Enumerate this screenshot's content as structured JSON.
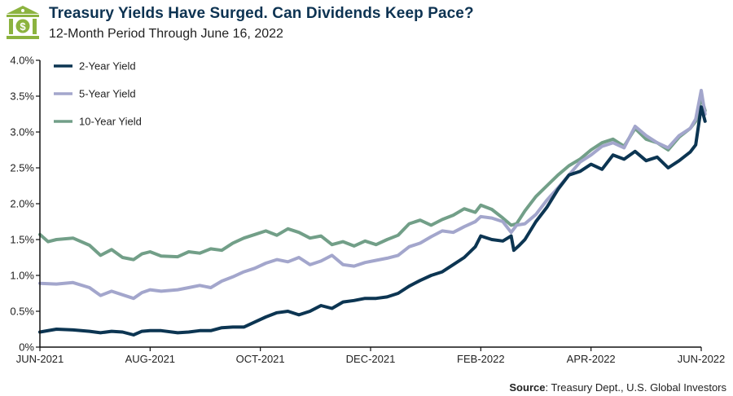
{
  "header": {
    "icon": "bank-dollar-icon",
    "title": "Treasury Yields Have Surged. Can Dividends Keep Pace?",
    "subtitle": "12-Month Period Through June 16, 2022"
  },
  "source": {
    "label": "Source",
    "text": ": Treasury Dept., U.S. Global Investors"
  },
  "chart_data": {
    "type": "line",
    "title": "Treasury Yields Have Surged. Can Dividends Keep Pace?",
    "subtitle": "12-Month Period Through June 16, 2022",
    "xlabel": "",
    "ylabel": "",
    "x_unit": "months since June 2021",
    "xlim": [
      0,
      12.07
    ],
    "ylim": [
      0,
      4.0
    ],
    "x_ticks": [
      {
        "value": 0,
        "label": "JUN-2021"
      },
      {
        "value": 2,
        "label": "AUG-2021"
      },
      {
        "value": 4,
        "label": "OCT-2021"
      },
      {
        "value": 6,
        "label": "DEC-2021"
      },
      {
        "value": 8,
        "label": "FEB-2022"
      },
      {
        "value": 10,
        "label": "APR-2022"
      },
      {
        "value": 12,
        "label": "JUN-2022"
      }
    ],
    "y_ticks": [
      {
        "value": 0,
        "label": "0%"
      },
      {
        "value": 0.5,
        "label": "0.5%"
      },
      {
        "value": 1.0,
        "label": "1.0%"
      },
      {
        "value": 1.5,
        "label": "1.5%"
      },
      {
        "value": 2.0,
        "label": "2.0%"
      },
      {
        "value": 2.5,
        "label": "2.5%"
      },
      {
        "value": 3.0,
        "label": "3.0%"
      },
      {
        "value": 3.5,
        "label": "3.5%"
      },
      {
        "value": 4.0,
        "label": "4.0%"
      }
    ],
    "grid": false,
    "legend_position": "top-left",
    "series": [
      {
        "name": "10-Year Yield",
        "color": "#729f88",
        "x": [
          0,
          0.15,
          0.3,
          0.6,
          0.9,
          1.1,
          1.3,
          1.5,
          1.7,
          1.85,
          2.0,
          2.2,
          2.5,
          2.7,
          2.9,
          3.1,
          3.3,
          3.5,
          3.7,
          3.9,
          4.1,
          4.3,
          4.5,
          4.7,
          4.9,
          5.1,
          5.3,
          5.5,
          5.7,
          5.9,
          6.1,
          6.3,
          6.5,
          6.7,
          6.9,
          7.1,
          7.3,
          7.5,
          7.7,
          7.9,
          8.0,
          8.2,
          8.4,
          8.55,
          8.65,
          8.8,
          9.0,
          9.2,
          9.4,
          9.6,
          9.8,
          10.0,
          10.2,
          10.4,
          10.6,
          10.8,
          11.0,
          11.2,
          11.4,
          11.6,
          11.8,
          11.9,
          12.0,
          12.07
        ],
        "values": [
          1.57,
          1.47,
          1.5,
          1.52,
          1.42,
          1.28,
          1.36,
          1.25,
          1.22,
          1.3,
          1.33,
          1.27,
          1.26,
          1.33,
          1.31,
          1.37,
          1.35,
          1.45,
          1.52,
          1.57,
          1.62,
          1.56,
          1.65,
          1.6,
          1.52,
          1.55,
          1.43,
          1.47,
          1.41,
          1.48,
          1.43,
          1.5,
          1.56,
          1.72,
          1.77,
          1.7,
          1.78,
          1.84,
          1.93,
          1.88,
          1.98,
          1.92,
          1.8,
          1.7,
          1.72,
          1.9,
          2.1,
          2.25,
          2.4,
          2.53,
          2.62,
          2.75,
          2.85,
          2.9,
          2.8,
          3.05,
          2.9,
          2.85,
          2.75,
          2.93,
          3.05,
          3.15,
          3.48,
          3.3
        ]
      },
      {
        "name": "5-Year Yield",
        "color": "#a3a6cc",
        "x": [
          0,
          0.3,
          0.6,
          0.9,
          1.1,
          1.3,
          1.5,
          1.7,
          1.85,
          2.0,
          2.2,
          2.5,
          2.7,
          2.9,
          3.1,
          3.3,
          3.5,
          3.7,
          3.9,
          4.1,
          4.3,
          4.5,
          4.7,
          4.9,
          5.1,
          5.3,
          5.5,
          5.7,
          5.9,
          6.1,
          6.3,
          6.5,
          6.7,
          6.9,
          7.1,
          7.3,
          7.5,
          7.7,
          7.9,
          8.0,
          8.2,
          8.4,
          8.55,
          8.65,
          8.8,
          9.0,
          9.2,
          9.4,
          9.6,
          9.8,
          10.0,
          10.2,
          10.4,
          10.6,
          10.8,
          11.0,
          11.2,
          11.4,
          11.6,
          11.8,
          11.9,
          12.0,
          12.07
        ],
        "values": [
          0.89,
          0.88,
          0.9,
          0.83,
          0.72,
          0.78,
          0.73,
          0.68,
          0.76,
          0.8,
          0.78,
          0.8,
          0.83,
          0.86,
          0.83,
          0.92,
          0.98,
          1.05,
          1.1,
          1.17,
          1.22,
          1.19,
          1.25,
          1.15,
          1.2,
          1.28,
          1.15,
          1.13,
          1.18,
          1.21,
          1.24,
          1.28,
          1.4,
          1.45,
          1.54,
          1.62,
          1.6,
          1.68,
          1.75,
          1.82,
          1.8,
          1.75,
          1.6,
          1.7,
          1.72,
          1.85,
          2.05,
          2.22,
          2.4,
          2.58,
          2.68,
          2.8,
          2.85,
          2.78,
          3.08,
          2.95,
          2.85,
          2.78,
          2.95,
          3.05,
          3.18,
          3.58,
          3.25
        ]
      },
      {
        "name": "2-Year Yield",
        "color": "#0c3552",
        "x": [
          0,
          0.3,
          0.6,
          0.9,
          1.1,
          1.3,
          1.5,
          1.7,
          1.85,
          2.0,
          2.2,
          2.5,
          2.7,
          2.9,
          3.1,
          3.3,
          3.5,
          3.7,
          3.9,
          4.1,
          4.3,
          4.5,
          4.7,
          4.9,
          5.1,
          5.3,
          5.5,
          5.7,
          5.9,
          6.1,
          6.3,
          6.5,
          6.7,
          6.9,
          7.1,
          7.3,
          7.5,
          7.7,
          7.9,
          8.0,
          8.2,
          8.4,
          8.55,
          8.6,
          8.7,
          8.8,
          9.0,
          9.2,
          9.4,
          9.6,
          9.8,
          10.0,
          10.2,
          10.4,
          10.6,
          10.8,
          11.0,
          11.2,
          11.4,
          11.6,
          11.8,
          11.9,
          12.0,
          12.07
        ],
        "values": [
          0.21,
          0.25,
          0.24,
          0.22,
          0.2,
          0.22,
          0.21,
          0.17,
          0.22,
          0.23,
          0.23,
          0.2,
          0.21,
          0.23,
          0.23,
          0.27,
          0.28,
          0.28,
          0.35,
          0.42,
          0.48,
          0.5,
          0.45,
          0.5,
          0.58,
          0.54,
          0.63,
          0.65,
          0.68,
          0.68,
          0.7,
          0.75,
          0.85,
          0.93,
          1.0,
          1.05,
          1.15,
          1.25,
          1.4,
          1.55,
          1.5,
          1.48,
          1.55,
          1.35,
          1.42,
          1.5,
          1.75,
          1.95,
          2.2,
          2.4,
          2.45,
          2.55,
          2.48,
          2.68,
          2.62,
          2.73,
          2.6,
          2.65,
          2.5,
          2.6,
          2.72,
          2.82,
          3.35,
          3.15
        ]
      }
    ]
  }
}
